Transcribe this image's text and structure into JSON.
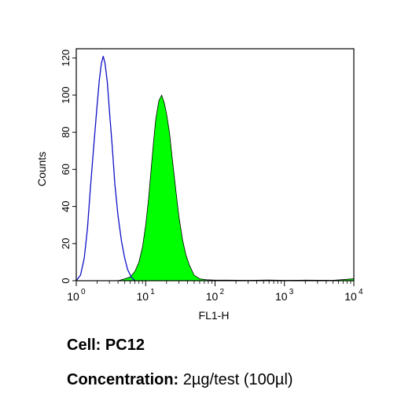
{
  "chart_data": {
    "type": "area",
    "xlabel": "FL1-H",
    "ylabel": "Counts",
    "xscale": "log",
    "xlim": [
      1,
      10000
    ],
    "ylim": [
      0,
      125
    ],
    "x_ticks": [
      {
        "base": "10",
        "exp": "0"
      },
      {
        "base": "10",
        "exp": "1"
      },
      {
        "base": "10",
        "exp": "2"
      },
      {
        "base": "10",
        "exp": "3"
      },
      {
        "base": "10",
        "exp": "4"
      }
    ],
    "y_ticks": [
      "0",
      "20",
      "40",
      "60",
      "80",
      "100",
      "120"
    ],
    "grid": false,
    "legend": "none",
    "series": [
      {
        "style": "outline",
        "color": "#1010c8",
        "points": [
          [
            1.0,
            0
          ],
          [
            1.15,
            3
          ],
          [
            1.3,
            12
          ],
          [
            1.45,
            28
          ],
          [
            1.6,
            50
          ],
          [
            1.8,
            74
          ],
          [
            2.0,
            95
          ],
          [
            2.15,
            108
          ],
          [
            2.3,
            117
          ],
          [
            2.45,
            121
          ],
          [
            2.6,
            117
          ],
          [
            2.8,
            107
          ],
          [
            3.0,
            92
          ],
          [
            3.3,
            72
          ],
          [
            3.6,
            52
          ],
          [
            4.0,
            35
          ],
          [
            4.5,
            21
          ],
          [
            5.0,
            12
          ],
          [
            5.5,
            6
          ],
          [
            6.2,
            2
          ],
          [
            7.0,
            0
          ]
        ]
      },
      {
        "style": "filled",
        "color": "#00ff00",
        "points": [
          [
            4.0,
            0
          ],
          [
            5.0,
            1
          ],
          [
            6.0,
            2
          ],
          [
            7.0,
            5
          ],
          [
            8.0,
            10
          ],
          [
            9.0,
            18
          ],
          [
            10.0,
            30
          ],
          [
            11.0,
            44
          ],
          [
            12.0,
            60
          ],
          [
            13.0,
            75
          ],
          [
            14.0,
            87
          ],
          [
            15.5,
            97
          ],
          [
            17.0,
            100
          ],
          [
            18.5,
            96
          ],
          [
            20.0,
            90
          ],
          [
            22.0,
            80
          ],
          [
            24.0,
            67
          ],
          [
            27.0,
            50
          ],
          [
            30.0,
            35
          ],
          [
            34.0,
            22
          ],
          [
            38.0,
            14
          ],
          [
            43.0,
            8
          ],
          [
            50.0,
            3
          ],
          [
            60.0,
            1
          ],
          [
            75.0,
            0.5
          ],
          [
            100.0,
            0.3
          ],
          [
            150.0,
            0.3
          ],
          [
            300.0,
            0.2
          ],
          [
            600.0,
            0.4
          ],
          [
            1000.0,
            0.2
          ],
          [
            2000.0,
            0.3
          ],
          [
            5000.0,
            0.2
          ],
          [
            10000.0,
            1
          ]
        ]
      }
    ]
  },
  "captions": {
    "cell_label": "Cell:",
    "cell_value": "PC12",
    "concentration_label": "Concentration:",
    "concentration_value": "2µg/test (100µl)"
  }
}
